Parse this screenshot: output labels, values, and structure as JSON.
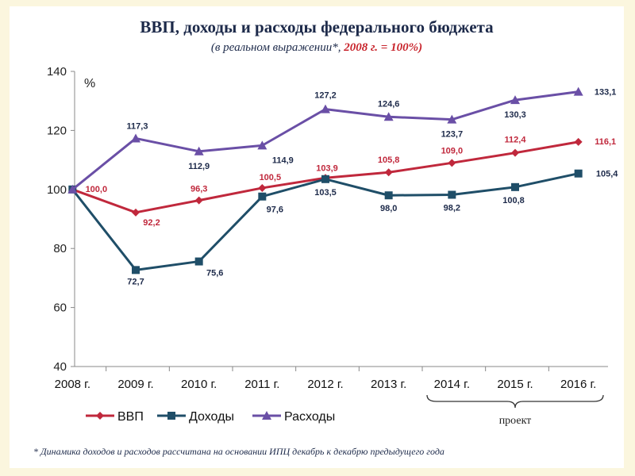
{
  "header": {
    "title": "ВВП, доходы и расходы федерального бюджета",
    "subtitle_prefix": "(в реальном выражении*, ",
    "subtitle_highlight": "2008 г. = 100%)",
    "subtitle_suffix": ")"
  },
  "footnote": "* Динамика доходов и расходов рассчитана на основании ИПЦ декабрь к декабрю предыдущего года",
  "colors": {
    "gdp": "#c0283c",
    "revenue": "#1f4e68",
    "expenditure": "#6a4fa6",
    "axis": "#888888"
  },
  "chart_data": {
    "type": "line",
    "unit_label": "%",
    "categories": [
      "2008 г.",
      "2009 г.",
      "2010 г.",
      "2011 г.",
      "2012 г.",
      "2013 г.",
      "2014 г.",
      "2015 г.",
      "2016 г."
    ],
    "ylim": [
      40,
      140
    ],
    "yticks": [
      40,
      60,
      80,
      100,
      120,
      140
    ],
    "grid": false,
    "legend_position": "bottom-left",
    "projection_label": "проект",
    "projection_categories": [
      "2014 г.",
      "2015 г.",
      "2016 г."
    ],
    "series": [
      {
        "name": "ВВП",
        "key": "gdp",
        "marker": "diamond",
        "values": [
          100,
          92.2,
          96.3,
          100.5,
          103.9,
          105.8,
          109.0,
          112.4,
          116.1
        ],
        "labels": [
          "100,0",
          "92,2",
          "96,3",
          "100,5",
          "103,9",
          "105,8",
          "109,0",
          "112,4",
          "116,1"
        ]
      },
      {
        "name": "Доходы",
        "key": "revenue",
        "marker": "square",
        "values": [
          100,
          72.7,
          75.6,
          97.6,
          103.5,
          98.0,
          98.2,
          100.8,
          105.4
        ],
        "labels": [
          "",
          "72,7",
          "75,6",
          "97,6",
          "103,5",
          "98,0",
          "98,2",
          "100,8",
          "105,4"
        ]
      },
      {
        "name": "Расходы",
        "key": "expenditure",
        "marker": "triangle",
        "values": [
          100,
          117.3,
          112.9,
          114.9,
          127.2,
          124.6,
          123.7,
          130.3,
          133.1
        ],
        "labels": [
          "",
          "117,3",
          "112,9",
          "114,9",
          "127,2",
          "124,6",
          "123,7",
          "130,3",
          "133,1"
        ]
      }
    ]
  }
}
